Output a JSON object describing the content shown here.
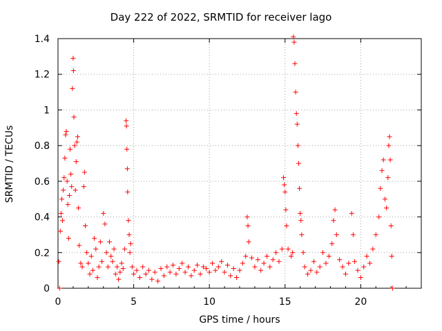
{
  "chart_data": {
    "type": "scatter",
    "title": "Day 222 of 2022, SRMTID for receiver lago",
    "xlabel": "GPS time / hours",
    "ylabel": "SRMTID / TECUs",
    "xlim": [
      0,
      24
    ],
    "ylim": [
      0,
      1.4
    ],
    "xticks": [
      0,
      5,
      10,
      15,
      20
    ],
    "xtick_labels": [
      "0",
      "5",
      "10",
      "15",
      "20"
    ],
    "yticks": [
      0,
      0.2,
      0.4,
      0.6,
      0.8,
      1.0,
      1.2,
      1.4
    ],
    "ytick_labels": [
      "0",
      "0.2",
      "0.4",
      "0.6",
      "0.8",
      "1",
      "1.2",
      "1.4"
    ],
    "grid": true,
    "marker": "plus",
    "color": "#ff0000",
    "series": [
      {
        "name": "SRMTID",
        "points": [
          [
            0.05,
            0.15
          ],
          [
            0.1,
            0.0
          ],
          [
            0.15,
            0.32
          ],
          [
            0.2,
            0.42
          ],
          [
            0.25,
            0.5
          ],
          [
            0.3,
            0.38
          ],
          [
            0.35,
            0.55
          ],
          [
            0.4,
            0.62
          ],
          [
            0.45,
            0.73
          ],
          [
            0.5,
            0.86
          ],
          [
            0.55,
            0.88
          ],
          [
            0.6,
            0.6
          ],
          [
            0.65,
            0.47
          ],
          [
            0.7,
            0.28
          ],
          [
            0.75,
            0.52
          ],
          [
            0.8,
            0.78
          ],
          [
            0.85,
            0.64
          ],
          [
            0.9,
            0.57
          ],
          [
            0.95,
            1.12
          ],
          [
            1.0,
            1.29
          ],
          [
            1.02,
            1.22
          ],
          [
            1.05,
            0.96
          ],
          [
            1.1,
            0.8
          ],
          [
            1.15,
            0.55
          ],
          [
            1.2,
            0.71
          ],
          [
            1.25,
            0.82
          ],
          [
            1.3,
            0.85
          ],
          [
            1.35,
            0.45
          ],
          [
            1.4,
            0.24
          ],
          [
            1.5,
            0.14
          ],
          [
            1.6,
            0.12
          ],
          [
            1.7,
            0.57
          ],
          [
            1.75,
            0.65
          ],
          [
            1.8,
            0.35
          ],
          [
            1.9,
            0.2
          ],
          [
            2.0,
            0.14
          ],
          [
            2.1,
            0.08
          ],
          [
            2.2,
            0.18
          ],
          [
            2.3,
            0.1
          ],
          [
            2.4,
            0.28
          ],
          [
            2.5,
            0.22
          ],
          [
            2.6,
            0.06
          ],
          [
            2.7,
            0.12
          ],
          [
            2.8,
            0.26
          ],
          [
            2.9,
            0.15
          ],
          [
            3.0,
            0.42
          ],
          [
            3.1,
            0.36
          ],
          [
            3.2,
            0.2
          ],
          [
            3.3,
            0.12
          ],
          [
            3.4,
            0.26
          ],
          [
            3.5,
            0.18
          ],
          [
            3.6,
            0.15
          ],
          [
            3.7,
            0.22
          ],
          [
            3.8,
            0.08
          ],
          [
            3.9,
            0.12
          ],
          [
            4.0,
            0.05
          ],
          [
            4.1,
            0.09
          ],
          [
            4.2,
            0.14
          ],
          [
            4.3,
            0.11
          ],
          [
            4.4,
            0.22
          ],
          [
            4.5,
            0.94
          ],
          [
            4.52,
            0.91
          ],
          [
            4.55,
            0.78
          ],
          [
            4.58,
            0.67
          ],
          [
            4.6,
            0.54
          ],
          [
            4.65,
            0.38
          ],
          [
            4.7,
            0.3
          ],
          [
            4.75,
            0.2
          ],
          [
            4.8,
            0.25
          ],
          [
            4.9,
            0.12
          ],
          [
            5.0,
            0.08
          ],
          [
            5.2,
            0.1
          ],
          [
            5.4,
            0.06
          ],
          [
            5.6,
            0.12
          ],
          [
            5.8,
            0.08
          ],
          [
            6.0,
            0.1
          ],
          [
            6.2,
            0.05
          ],
          [
            6.4,
            0.09
          ],
          [
            6.6,
            0.04
          ],
          [
            6.8,
            0.11
          ],
          [
            7.0,
            0.07
          ],
          [
            7.2,
            0.12
          ],
          [
            7.4,
            0.09
          ],
          [
            7.6,
            0.13
          ],
          [
            7.8,
            0.08
          ],
          [
            8.0,
            0.11
          ],
          [
            8.2,
            0.14
          ],
          [
            8.4,
            0.09
          ],
          [
            8.6,
            0.12
          ],
          [
            8.8,
            0.07
          ],
          [
            9.0,
            0.1
          ],
          [
            9.2,
            0.13
          ],
          [
            9.4,
            0.08
          ],
          [
            9.6,
            0.12
          ],
          [
            9.8,
            0.11
          ],
          [
            10.0,
            0.09
          ],
          [
            10.2,
            0.14
          ],
          [
            10.4,
            0.1
          ],
          [
            10.6,
            0.12
          ],
          [
            10.8,
            0.15
          ],
          [
            11.0,
            0.09
          ],
          [
            11.2,
            0.13
          ],
          [
            11.4,
            0.07
          ],
          [
            11.6,
            0.11
          ],
          [
            11.8,
            0.06
          ],
          [
            12.0,
            0.1
          ],
          [
            12.2,
            0.14
          ],
          [
            12.4,
            0.18
          ],
          [
            12.5,
            0.4
          ],
          [
            12.55,
            0.35
          ],
          [
            12.6,
            0.26
          ],
          [
            12.8,
            0.17
          ],
          [
            13.0,
            0.12
          ],
          [
            13.2,
            0.16
          ],
          [
            13.4,
            0.1
          ],
          [
            13.6,
            0.14
          ],
          [
            13.8,
            0.18
          ],
          [
            14.0,
            0.12
          ],
          [
            14.2,
            0.16
          ],
          [
            14.4,
            0.2
          ],
          [
            14.6,
            0.15
          ],
          [
            14.8,
            0.22
          ],
          [
            14.9,
            0.62
          ],
          [
            14.95,
            0.58
          ],
          [
            15.0,
            0.54
          ],
          [
            15.05,
            0.44
          ],
          [
            15.1,
            0.35
          ],
          [
            15.2,
            0.22
          ],
          [
            15.4,
            0.18
          ],
          [
            15.5,
            0.2
          ],
          [
            15.55,
            1.41
          ],
          [
            15.6,
            1.38
          ],
          [
            15.65,
            1.26
          ],
          [
            15.7,
            1.1
          ],
          [
            15.75,
            0.98
          ],
          [
            15.8,
            0.92
          ],
          [
            15.85,
            0.8
          ],
          [
            15.9,
            0.7
          ],
          [
            15.95,
            0.56
          ],
          [
            16.0,
            0.42
          ],
          [
            16.05,
            0.38
          ],
          [
            16.1,
            0.3
          ],
          [
            16.2,
            0.2
          ],
          [
            16.3,
            0.12
          ],
          [
            16.5,
            0.08
          ],
          [
            16.7,
            0.1
          ],
          [
            16.9,
            0.15
          ],
          [
            17.1,
            0.09
          ],
          [
            17.3,
            0.12
          ],
          [
            17.5,
            0.2
          ],
          [
            17.7,
            0.14
          ],
          [
            17.9,
            0.18
          ],
          [
            18.1,
            0.25
          ],
          [
            18.2,
            0.38
          ],
          [
            18.3,
            0.44
          ],
          [
            18.4,
            0.3
          ],
          [
            18.6,
            0.16
          ],
          [
            18.8,
            0.12
          ],
          [
            19.0,
            0.08
          ],
          [
            19.2,
            0.14
          ],
          [
            19.4,
            0.42
          ],
          [
            19.5,
            0.3
          ],
          [
            19.6,
            0.15
          ],
          [
            19.8,
            0.1
          ],
          [
            20.0,
            0.06
          ],
          [
            20.2,
            0.12
          ],
          [
            20.4,
            0.18
          ],
          [
            20.6,
            0.14
          ],
          [
            20.8,
            0.22
          ],
          [
            21.0,
            0.3
          ],
          [
            21.2,
            0.4
          ],
          [
            21.3,
            0.56
          ],
          [
            21.4,
            0.66
          ],
          [
            21.5,
            0.72
          ],
          [
            21.6,
            0.5
          ],
          [
            21.7,
            0.45
          ],
          [
            21.8,
            0.62
          ],
          [
            21.85,
            0.8
          ],
          [
            21.9,
            0.85
          ],
          [
            21.95,
            0.72
          ],
          [
            22.0,
            0.35
          ],
          [
            22.05,
            0.18
          ],
          [
            22.1,
            0.0
          ]
        ]
      }
    ]
  }
}
